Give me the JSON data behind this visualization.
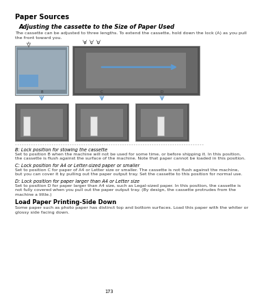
{
  "bg_color": "#ffffff",
  "page_number": "173",
  "title": "Paper Sources",
  "section1_title": "Adjusting the cassette to the Size of Paper Used",
  "section1_body": "The cassette can be adjusted to three lengths. To extend the cassette, hold down the lock (A) as you pull\nthe front toward you.",
  "label_b_note_title": "B: Lock position for stowing the cassette",
  "label_b_note_body": "Set to position B when the machine will not be used for some time, or before shipping it. In this position,\nthe cassette is flush against the surface of the machine. Note that paper cannot be loaded in this position.",
  "label_c_note_title": "C: Lock position for A4 or Letter-sized paper or smaller",
  "label_c_note_body": "Set to position C for paper of A4 or Letter size or smaller. The cassette is not flush against the machine,\nbut you can cover it by pulling out the paper output tray. Set the cassette to this position for normal use.",
  "label_d_note_title": "D: Lock position for paper larger than A4 or Letter size",
  "label_d_note_body": "Set to position D for paper larger than A4 size, such as Legal-sized paper. In this position, the cassette is\nnot fully covered when you pull out the paper output tray. (By design, the cassette protrudes from the\nmachine a little.)",
  "section2_title": "Load Paper Printing-Side Down",
  "section2_body": "Some paper such as photo paper has distinct top and bottom surfaces. Load this paper with the whiter or\nglossy side facing down.",
  "title_fontsize": 7.0,
  "sec_title_fontsize": 6.0,
  "body_fontsize": 4.6,
  "note_title_fontsize": 4.8,
  "note_body_fontsize": 4.5,
  "page_num_fontsize": 4.8,
  "title_color": "#000000",
  "body_color": "#333333",
  "blue_color": "#5b9bd5",
  "gray_dark": "#4a4a4a",
  "gray_mid": "#888888",
  "gray_light": "#c8c8c8",
  "gray_box": "#d4d4d4",
  "blue_dark": "#3a6fa8"
}
